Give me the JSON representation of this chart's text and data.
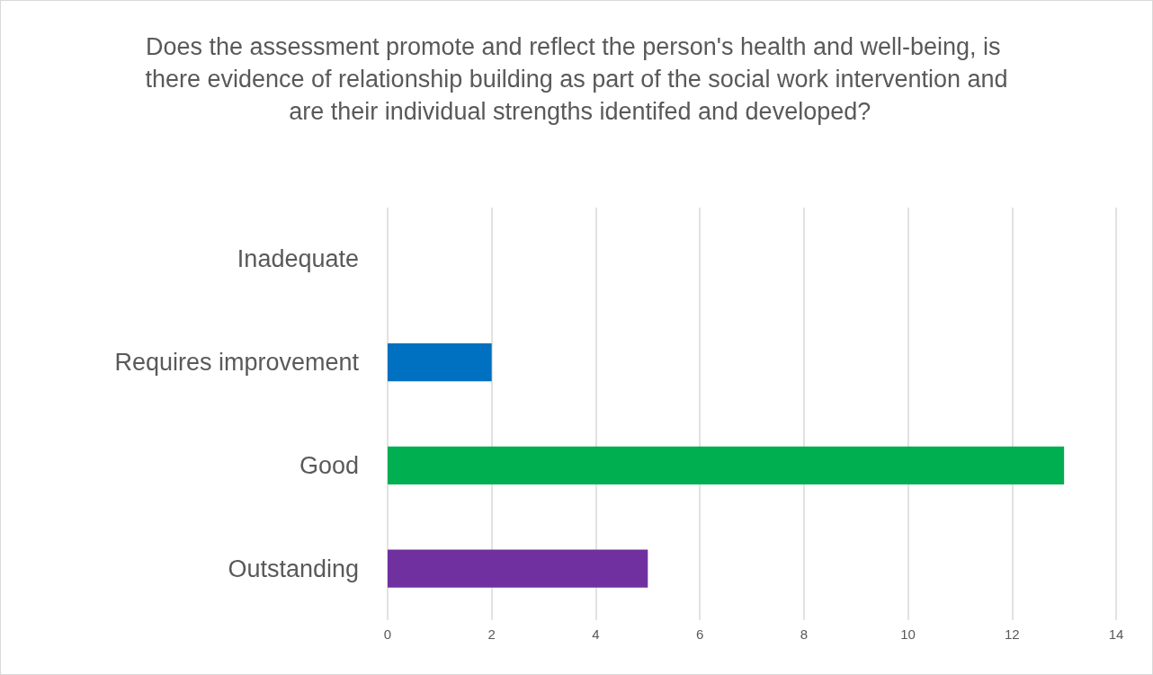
{
  "chart_data": {
    "type": "bar",
    "orientation": "horizontal",
    "title": "Does the assessment promote and reflect the person's health and well-being, is there evidence of relationship building as part of the social work intervention and are their individual strengths identifed and developed?",
    "categories": [
      "Inadequate",
      "Requires improvement",
      "Good",
      "Outstanding"
    ],
    "values": [
      0,
      2,
      13,
      5
    ],
    "colors": [
      "#4472c4",
      "#0070c0",
      "#00b050",
      "#7030a0"
    ],
    "xlim": [
      0,
      14
    ],
    "xticks": [
      0,
      2,
      4,
      6,
      8,
      10,
      12,
      14
    ],
    "grid": "x"
  }
}
